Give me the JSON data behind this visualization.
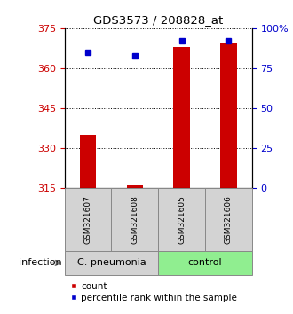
{
  "title": "GDS3573 / 208828_at",
  "samples": [
    "GSM321607",
    "GSM321608",
    "GSM321605",
    "GSM321606"
  ],
  "count_values": [
    335.0,
    316.2,
    368.0,
    369.5
  ],
  "percentile_values": [
    85,
    83,
    92,
    92
  ],
  "ylim_left": [
    315,
    375
  ],
  "ylim_right": [
    0,
    100
  ],
  "yticks_left": [
    315,
    330,
    345,
    360,
    375
  ],
  "yticks_right": [
    0,
    25,
    50,
    75,
    100
  ],
  "bar_color": "#cc0000",
  "dot_color": "#0000cc",
  "groups": [
    {
      "label": "C. pneumonia",
      "samples": [
        0,
        1
      ],
      "color": "#d3d3d3"
    },
    {
      "label": "control",
      "samples": [
        2,
        3
      ],
      "color": "#90ee90"
    }
  ],
  "group_label": "infection",
  "legend_count_label": "count",
  "legend_percentile_label": "percentile rank within the sample",
  "bar_width": 0.35,
  "left_tick_color": "#cc0000",
  "right_tick_color": "#0000cc",
  "sample_box_color": "#d3d3d3",
  "sample_box_edge": "#888888"
}
